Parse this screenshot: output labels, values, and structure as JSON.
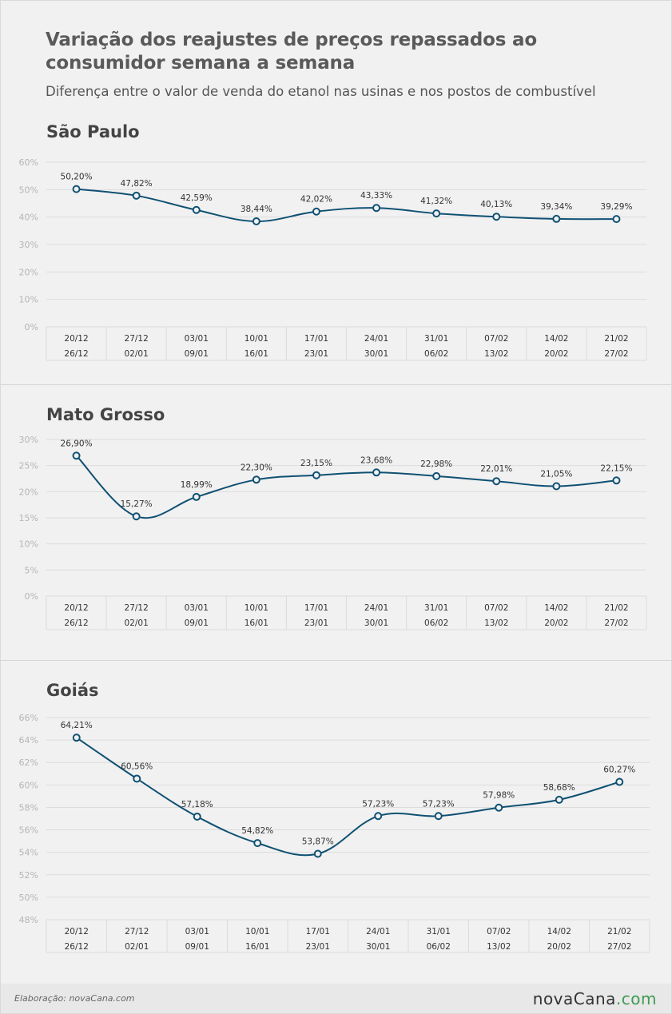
{
  "title": "Variação dos reajustes de preços repassados ao consumidor semana a semana",
  "subtitle": "Diferença entre o valor de venda do etanol nas usinas e nos postos de combustível",
  "footer": {
    "credit": "Elaboração: novaCana.com",
    "logo_main": "novaCana",
    "logo_suffix": ".com"
  },
  "colors": {
    "line": "#0f5173",
    "grid": "#dcdcdc",
    "text": "#333333",
    "brand_green": "#3f9a52"
  },
  "chart_data": [
    {
      "type": "line",
      "title": "São Paulo",
      "categories": [
        [
          "20/12",
          "26/12"
        ],
        [
          "27/12",
          "02/01"
        ],
        [
          "03/01",
          "09/01"
        ],
        [
          "10/01",
          "16/01"
        ],
        [
          "17/01",
          "23/01"
        ],
        [
          "24/01",
          "30/01"
        ],
        [
          "31/01",
          "06/02"
        ],
        [
          "07/02",
          "13/02"
        ],
        [
          "14/02",
          "20/02"
        ],
        [
          "21/02",
          "27/02"
        ]
      ],
      "values": [
        50.2,
        47.82,
        42.59,
        38.44,
        42.02,
        43.33,
        41.32,
        40.13,
        39.34,
        39.29
      ],
      "labels": [
        "50,20%",
        "47,82%",
        "42,59%",
        "38,44%",
        "42,02%",
        "43,33%",
        "41,32%",
        "40,13%",
        "39,34%",
        "39,29%"
      ],
      "ylim": [
        0,
        60
      ],
      "yticks": [
        0,
        10,
        20,
        30,
        40,
        50,
        60
      ],
      "ytick_labels": [
        "0%",
        "10%",
        "20%",
        "30%",
        "40%",
        "50%",
        "60%"
      ],
      "grid": true
    },
    {
      "type": "line",
      "title": "Mato Grosso",
      "categories": [
        [
          "20/12",
          "26/12"
        ],
        [
          "27/12",
          "02/01"
        ],
        [
          "03/01",
          "09/01"
        ],
        [
          "10/01",
          "16/01"
        ],
        [
          "17/01",
          "23/01"
        ],
        [
          "24/01",
          "30/01"
        ],
        [
          "31/01",
          "06/02"
        ],
        [
          "07/02",
          "13/02"
        ],
        [
          "14/02",
          "20/02"
        ],
        [
          "21/02",
          "27/02"
        ]
      ],
      "values": [
        26.9,
        15.27,
        18.99,
        22.3,
        23.15,
        23.68,
        22.98,
        22.01,
        21.05,
        22.15
      ],
      "labels": [
        "26,90%",
        "15,27%",
        "18,99%",
        "22,30%",
        "23,15%",
        "23,68%",
        "22,98%",
        "22,01%",
        "21,05%",
        "22,15%"
      ],
      "ylim": [
        0,
        30
      ],
      "yticks": [
        0,
        5,
        10,
        15,
        20,
        25,
        30
      ],
      "ytick_labels": [
        "0%",
        "5%",
        "10%",
        "15%",
        "20%",
        "25%",
        "30%"
      ],
      "grid": true
    },
    {
      "type": "line",
      "title": "Goiás",
      "categories": [
        [
          "20/12",
          "26/12"
        ],
        [
          "27/12",
          "02/01"
        ],
        [
          "03/01",
          "09/01"
        ],
        [
          "10/01",
          "16/01"
        ],
        [
          "17/01",
          "23/01"
        ],
        [
          "24/01",
          "30/01"
        ],
        [
          "31/01",
          "06/02"
        ],
        [
          "07/02",
          "13/02"
        ],
        [
          "14/02",
          "20/02"
        ],
        [
          "21/02",
          "27/02"
        ]
      ],
      "values": [
        64.21,
        60.56,
        57.18,
        54.82,
        53.87,
        57.23,
        57.23,
        57.98,
        58.68,
        60.27
      ],
      "labels": [
        "64,21%",
        "60,56%",
        "57,18%",
        "54,82%",
        "53,87%",
        "57,23%",
        "57,23%",
        "57,98%",
        "58,68%",
        "60,27%"
      ],
      "ylim": [
        48,
        66
      ],
      "yticks": [
        48,
        50,
        52,
        54,
        56,
        58,
        60,
        62,
        64,
        66
      ],
      "ytick_labels": [
        "48%",
        "50%",
        "52%",
        "54%",
        "56%",
        "58%",
        "60%",
        "62%",
        "64%",
        "66%"
      ],
      "grid": true
    }
  ]
}
